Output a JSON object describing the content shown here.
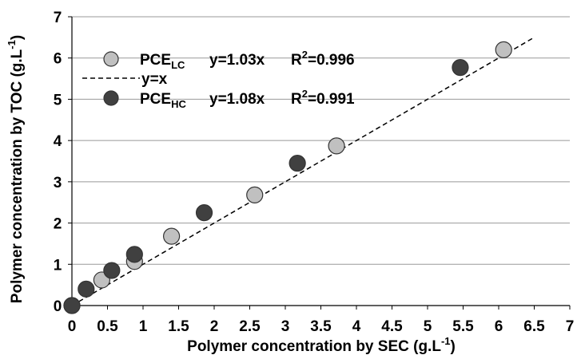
{
  "chart_data": {
    "type": "scatter",
    "title": "",
    "xlabel": {
      "main": "Polymer concentration by SEC (g.L",
      "sup": "-1",
      "tail": ")"
    },
    "ylabel": {
      "main": "Polymer concentration by TOC (g.L",
      "sup": "-1",
      "tail": ")"
    },
    "xlim": [
      0,
      7
    ],
    "ylim": [
      0,
      7
    ],
    "x_ticks": [
      0,
      0.5,
      1,
      1.5,
      2,
      2.5,
      3,
      3.5,
      4,
      4.5,
      5,
      5.5,
      6,
      6.5,
      7
    ],
    "y_ticks": [
      0,
      1,
      2,
      3,
      4,
      5,
      6,
      7
    ],
    "grid": {
      "horizontal": true,
      "vertical": false
    },
    "legend_position": "top-left",
    "colors": {
      "lc_fill": "#c0c0c0",
      "hc_fill": "#404040",
      "marker_stroke": "#333333",
      "grid": "#999999",
      "axis": "#000000",
      "reference_line": "#000000"
    },
    "series": [
      {
        "name": "PCE",
        "sub": "LC",
        "equation": "y=1.03x",
        "r2_label": "R",
        "r2_sup": "2",
        "r2_value": "=0.996",
        "x": [
          0,
          0.42,
          0.88,
          1.4,
          2.57,
          3.72,
          6.07
        ],
        "y": [
          0,
          0.62,
          1.07,
          1.68,
          2.68,
          3.87,
          6.2
        ]
      },
      {
        "name": "PCE",
        "sub": "HC",
        "equation": "y=1.08x",
        "r2_label": "R",
        "r2_sup": "2",
        "r2_value": "=0.991",
        "x": [
          0,
          0.2,
          0.56,
          0.88,
          1.86,
          3.17,
          5.46
        ],
        "y": [
          0,
          0.4,
          0.85,
          1.24,
          2.25,
          3.45,
          5.77
        ]
      }
    ],
    "reference_line": {
      "label": "y=x",
      "x": [
        0,
        6.5
      ],
      "y": [
        0,
        6.5
      ]
    }
  }
}
